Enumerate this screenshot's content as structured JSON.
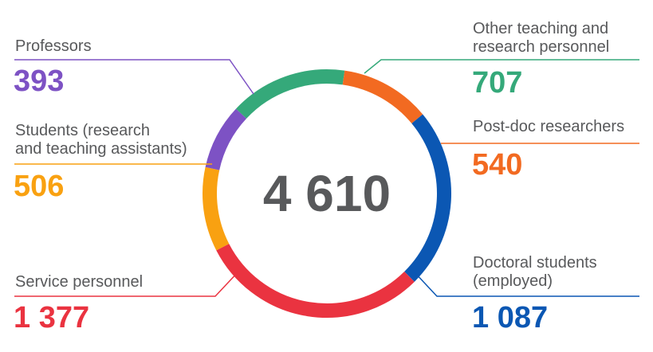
{
  "chart_data": {
    "type": "donut",
    "total": "4 610",
    "series": [
      {
        "name": "Other teaching and research personnel",
        "value": 707,
        "display": "707",
        "color": "#35a97a"
      },
      {
        "name": "Post-doc researchers",
        "value": 540,
        "display": "540",
        "color": "#f26a21"
      },
      {
        "name": "Doctoral students (employed)",
        "value": 1087,
        "display": "1 087",
        "color": "#0b57b3"
      },
      {
        "name": "Service personnel",
        "value": 1377,
        "display": "1 377",
        "color": "#ea3340"
      },
      {
        "name": "Students (research and teaching assistants)",
        "value": 506,
        "display": "506",
        "color": "#f9a111"
      },
      {
        "name": "Professors",
        "value": 393,
        "display": "393",
        "color": "#7d52c4"
      }
    ]
  },
  "labels": {
    "professors": [
      "Professors"
    ],
    "students": [
      "Students (research",
      "and teaching assistants)"
    ],
    "service": [
      "Service personnel"
    ],
    "other": [
      "Other teaching and",
      "research personnel"
    ],
    "postdoc": [
      "Post-doc researchers"
    ],
    "doctoral": [
      "Doctoral students",
      "(employed)"
    ]
  }
}
